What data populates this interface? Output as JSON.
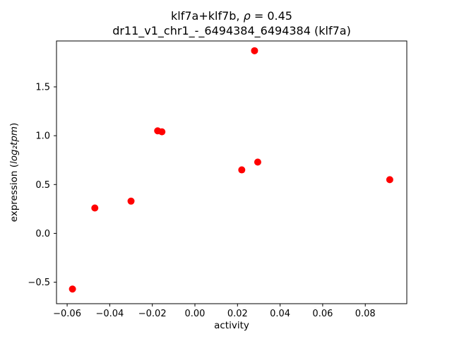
{
  "chart_data": {
    "type": "scatter",
    "title": "klf7a+klf7b, ρ = 0.45",
    "title_prefix": "klf7a+klf7b, ",
    "title_rho": "ρ",
    "title_suffix": " = 0.45",
    "subtitle": "dr11_v1_chr1_-_6494384_6494384 (klf7a)",
    "xlabel": "activity",
    "ylabel": "expression (log₂tpm)",
    "ylabel_prefix": "expression (",
    "ylabel_math": "log₂tpm",
    "ylabel_suffix": ")",
    "xlim": [
      -0.065,
      0.0995
    ],
    "ylim": [
      -0.72,
      1.97
    ],
    "xticks": [
      -0.06,
      -0.04,
      -0.02,
      0.0,
      0.02,
      0.04,
      0.06,
      0.08
    ],
    "xtick_labels": [
      "−0.06",
      "−0.04",
      "−0.02",
      "0.00",
      "0.02",
      "0.04",
      "0.06",
      "0.08"
    ],
    "yticks": [
      -0.5,
      0.0,
      0.5,
      1.0,
      1.5
    ],
    "ytick_labels": [
      "−0.5",
      "0.0",
      "0.5",
      "1.0",
      "1.5"
    ],
    "marker_color": "#ff0000",
    "marker_radius": 5,
    "rho": 0.45,
    "points": [
      {
        "x": -0.0575,
        "y": -0.57
      },
      {
        "x": -0.047,
        "y": 0.26
      },
      {
        "x": -0.03,
        "y": 0.33
      },
      {
        "x": -0.0175,
        "y": 1.05
      },
      {
        "x": -0.0155,
        "y": 1.04
      },
      {
        "x": 0.022,
        "y": 0.65
      },
      {
        "x": 0.028,
        "y": 1.87
      },
      {
        "x": 0.0295,
        "y": 0.73
      },
      {
        "x": 0.0915,
        "y": 0.55
      }
    ]
  }
}
